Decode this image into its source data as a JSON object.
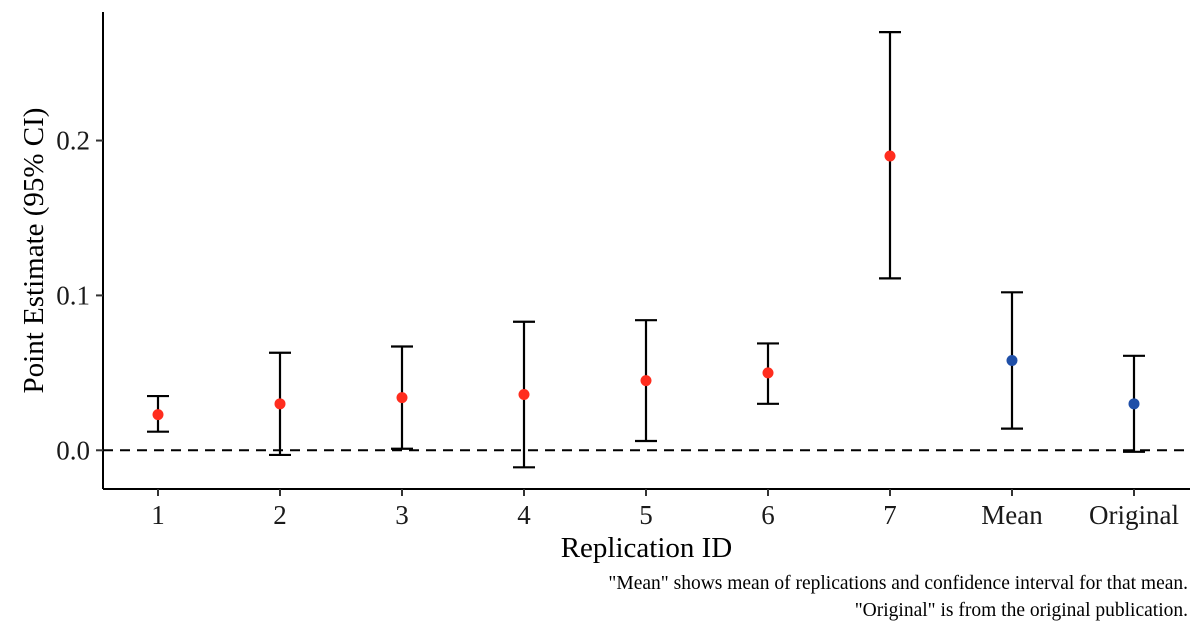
{
  "chart_data": {
    "type": "scatter",
    "categories": [
      "1",
      "2",
      "3",
      "4",
      "5",
      "6",
      "7",
      "Mean",
      "Original"
    ],
    "points": [
      {
        "category": "1",
        "estimate": 0.023,
        "ci_low": 0.012,
        "ci_high": 0.035,
        "color": "#ff2d1e"
      },
      {
        "category": "2",
        "estimate": 0.03,
        "ci_low": -0.003,
        "ci_high": 0.063,
        "color": "#ff2d1e"
      },
      {
        "category": "3",
        "estimate": 0.034,
        "ci_low": 0.001,
        "ci_high": 0.067,
        "color": "#ff2d1e"
      },
      {
        "category": "4",
        "estimate": 0.036,
        "ci_low": -0.011,
        "ci_high": 0.083,
        "color": "#ff2d1e"
      },
      {
        "category": "5",
        "estimate": 0.045,
        "ci_low": 0.006,
        "ci_high": 0.084,
        "color": "#ff2d1e"
      },
      {
        "category": "6",
        "estimate": 0.05,
        "ci_low": 0.03,
        "ci_high": 0.069,
        "color": "#ff2d1e"
      },
      {
        "category": "7",
        "estimate": 0.19,
        "ci_low": 0.111,
        "ci_high": 0.27,
        "color": "#ff2d1e"
      },
      {
        "category": "Mean",
        "estimate": 0.058,
        "ci_low": 0.014,
        "ci_high": 0.102,
        "color": "#1f4fa8"
      },
      {
        "category": "Original",
        "estimate": 0.03,
        "ci_low": -0.001,
        "ci_high": 0.061,
        "color": "#1f4fa8"
      }
    ],
    "xlabel": "Replication ID",
    "ylabel": "Point Estimate (95% CI)",
    "yticks": [
      "0.0",
      "0.1",
      "0.2"
    ],
    "ylim": [
      -0.025,
      0.283
    ],
    "reference_line": {
      "y": 0.0,
      "style": "dashed"
    },
    "grid": false,
    "legend": "none",
    "caption": [
      "\"Mean\" shows mean of replications and confidence interval for that mean.",
      "\"Original\" is from the original publication."
    ]
  }
}
